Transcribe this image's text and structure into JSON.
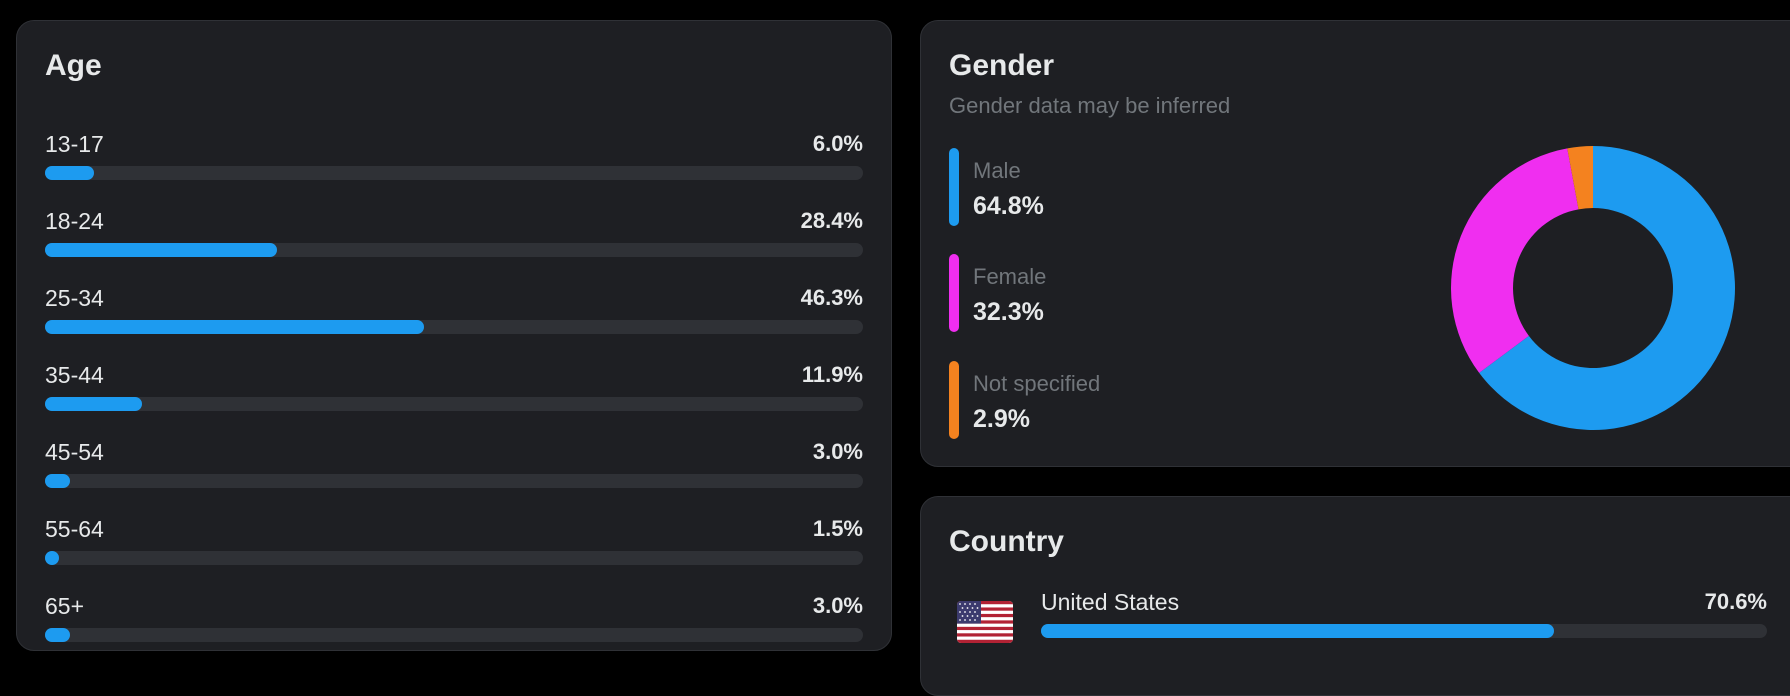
{
  "age": {
    "title": "Age",
    "rows": [
      {
        "label": "13-17",
        "value": "6.0%",
        "fraction": 0.06
      },
      {
        "label": "18-24",
        "value": "28.4%",
        "fraction": 0.284
      },
      {
        "label": "25-34",
        "value": "46.3%",
        "fraction": 0.463
      },
      {
        "label": "35-44",
        "value": "11.9%",
        "fraction": 0.119
      },
      {
        "label": "45-54",
        "value": "3.0%",
        "fraction": 0.03
      },
      {
        "label": "55-64",
        "value": "1.5%",
        "fraction": 0.015
      },
      {
        "label": "65+",
        "value": "3.0%",
        "fraction": 0.03
      }
    ]
  },
  "gender": {
    "title": "Gender",
    "subtitle": "Gender data may be inferred",
    "items": [
      {
        "label": "Male",
        "value": "64.8%",
        "fraction": 0.648,
        "color": "#1d9bf0"
      },
      {
        "label": "Female",
        "value": "32.3%",
        "fraction": 0.323,
        "color": "#f02ef0"
      },
      {
        "label": "Not specified",
        "value": "2.9%",
        "fraction": 0.029,
        "color": "#f4821f"
      }
    ]
  },
  "country": {
    "title": "Country",
    "items": [
      {
        "label": "United States",
        "value": "70.6%",
        "fraction": 0.706,
        "flag_icon": "us-flag-icon"
      }
    ]
  },
  "colors": {
    "accent": "#1d9bf0",
    "track": "#2f3136",
    "card_bg": "#1e1f23",
    "muted_text": "#71767b"
  }
}
